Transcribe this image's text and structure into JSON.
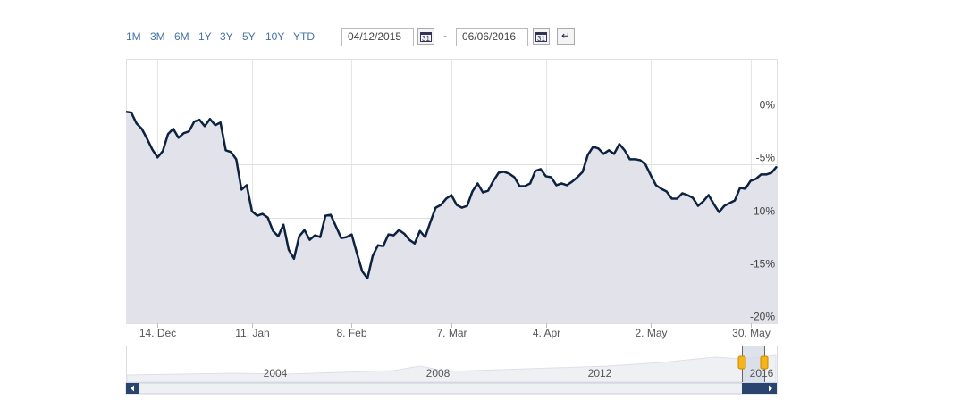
{
  "controls": {
    "ranges": [
      "1M",
      "3M",
      "6M",
      "1Y",
      "3Y",
      "5Y",
      "10Y",
      "YTD"
    ],
    "from": "04/12/2015",
    "separator": "-",
    "to": "06/06/2016",
    "calendar_icon": "31"
  },
  "navigator": {
    "labels": [
      "2004",
      "2008",
      "2012",
      "2016"
    ]
  },
  "chart_data": {
    "type": "line",
    "color": "#0d2240",
    "area_color": "#e1e2ea",
    "categories": [
      null,
      null,
      null,
      null,
      null,
      null,
      "14. Dec",
      null,
      null,
      null,
      null,
      null,
      null,
      null,
      null,
      null,
      null,
      null,
      null,
      null,
      null,
      null,
      null,
      null,
      "11. Jan",
      null,
      null,
      null,
      null,
      null,
      null,
      null,
      null,
      null,
      null,
      null,
      null,
      null,
      null,
      null,
      null,
      null,
      null,
      "8. Feb",
      null,
      null,
      null,
      null,
      null,
      null,
      null,
      null,
      null,
      null,
      null,
      null,
      null,
      null,
      null,
      null,
      null,
      null,
      "7. Mar",
      null,
      null,
      null,
      null,
      null,
      null,
      null,
      null,
      null,
      null,
      null,
      null,
      null,
      null,
      null,
      null,
      null,
      "4. Apr",
      null,
      null,
      null,
      null,
      null,
      null,
      null,
      null,
      null,
      null,
      null,
      null,
      null,
      null,
      null,
      null,
      null,
      null,
      null,
      "2. May",
      null,
      null,
      null,
      null,
      null,
      null,
      null,
      null,
      null,
      null,
      null,
      null,
      null,
      null,
      null,
      null,
      null,
      null,
      "30. May",
      null,
      null,
      null,
      null,
      null
    ],
    "values": [
      0,
      -0.08,
      -1.1,
      -1.61,
      -2.54,
      -3.56,
      -4.32,
      -3.73,
      -2.12,
      -1.61,
      -2.46,
      -2.03,
      -1.86,
      -0.93,
      -0.76,
      -1.36,
      -0.68,
      -1.27,
      -1.02,
      -3.64,
      -3.81,
      -4.49,
      -7.37,
      -6.95,
      -9.41,
      -9.83,
      -9.66,
      -10.0,
      -11.27,
      -11.78,
      -10.68,
      -13.05,
      -13.9,
      -11.78,
      -11.19,
      -12.12,
      -11.69,
      -11.86,
      -9.83,
      -9.75,
      -10.85,
      -11.95,
      -11.86,
      -11.61,
      -13.39,
      -15.08,
      -15.76,
      -13.64,
      -12.63,
      -12.71,
      -11.61,
      -11.69,
      -11.19,
      -11.53,
      -12.12,
      -12.46,
      -11.27,
      -11.86,
      -10.42,
      -9.07,
      -8.81,
      -8.22,
      -7.88,
      -8.81,
      -9.07,
      -8.9,
      -7.54,
      -6.78,
      -7.63,
      -7.46,
      -6.53,
      -5.76,
      -5.68,
      -5.85,
      -6.19,
      -7.03,
      -7.03,
      -6.78,
      -5.59,
      -5.42,
      -6.1,
      -6.19,
      -6.95,
      -6.78,
      -6.95,
      -6.61,
      -6.19,
      -5.68,
      -4.07,
      -3.31,
      -3.47,
      -3.98,
      -3.64,
      -3.98,
      -3.05,
      -3.64,
      -4.49,
      -4.49,
      -4.58,
      -5.0,
      -6.02,
      -6.95,
      -7.29,
      -7.54,
      -8.22,
      -8.22,
      -7.71,
      -7.88,
      -8.14,
      -8.9,
      -8.47,
      -7.88,
      -8.73,
      -9.49,
      -8.9,
      -8.64,
      -8.39,
      -7.2,
      -7.29,
      -6.53,
      -6.36,
      -5.93,
      -5.93,
      -5.76,
      -5.17
    ],
    "ylim": [
      -20,
      5
    ],
    "yticks": [
      {
        "value": 0,
        "label": "0%"
      },
      {
        "value": -5,
        "label": "-5%"
      },
      {
        "value": -10,
        "label": "-10%"
      },
      {
        "value": -15,
        "label": "-15%"
      },
      {
        "value": -20,
        "label": "-20%"
      }
    ],
    "grid": true
  }
}
